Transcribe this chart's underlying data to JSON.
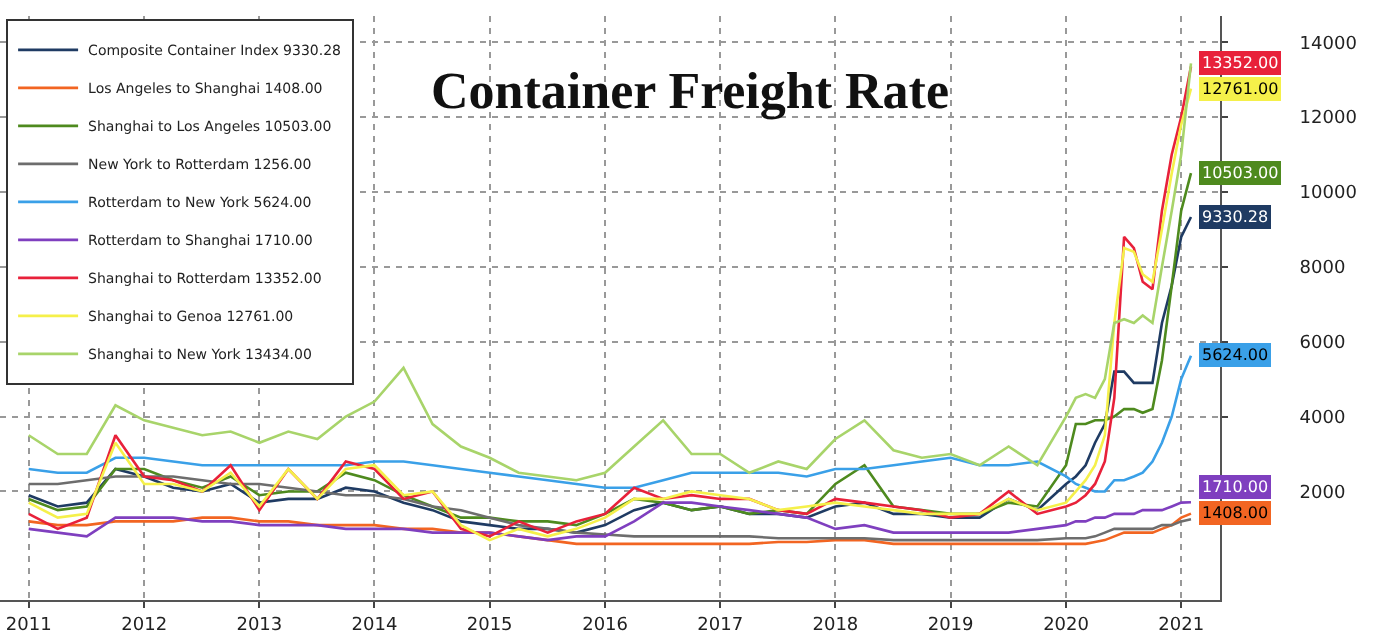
{
  "chart_data": {
    "type": "line",
    "title": "Container Freight Rate",
    "x": [
      "2011-07",
      "2011-10",
      "2012-01",
      "2012-04",
      "2012-07",
      "2012-10",
      "2013-01",
      "2013-04",
      "2013-07",
      "2013-10",
      "2014-01",
      "2014-04",
      "2014-07",
      "2014-10",
      "2015-01",
      "2015-04",
      "2015-07",
      "2015-10",
      "2016-01",
      "2016-04",
      "2016-07",
      "2016-10",
      "2017-01",
      "2017-04",
      "2017-07",
      "2017-10",
      "2018-01",
      "2018-04",
      "2018-07",
      "2018-10",
      "2019-01",
      "2019-04",
      "2019-07",
      "2019-10",
      "2020-01",
      "2020-04",
      "2020-07",
      "2020-08",
      "2020-09",
      "2020-10",
      "2020-11",
      "2020-12",
      "2021-01",
      "2021-02",
      "2021-03",
      "2021-04",
      "2021-05",
      "2021-06",
      "2021-07",
      "2021-08"
    ],
    "series": [
      {
        "name": "Composite Container Index 9330.28",
        "color": "#1f3b63",
        "values": [
          1900,
          1600,
          1700,
          2600,
          2400,
          2100,
          2000,
          2200,
          1700,
          1800,
          1800,
          2100,
          2000,
          1700,
          1500,
          1200,
          1100,
          1000,
          1000,
          900,
          1100,
          1500,
          1700,
          1500,
          1600,
          1400,
          1400,
          1300,
          1600,
          1700,
          1400,
          1400,
          1300,
          1300,
          1800,
          1500,
          2200,
          2400,
          2700,
          3300,
          3800,
          5200,
          5200,
          4900,
          4900,
          4900,
          6500,
          7500,
          8800,
          9330.28
        ],
        "value_labels": [
          null,
          null,
          null,
          null,
          null,
          null,
          null,
          null,
          null,
          null,
          null,
          null,
          null,
          null,
          null,
          null,
          null,
          null,
          null,
          null,
          null,
          null,
          null,
          null,
          null,
          null,
          null,
          null,
          null,
          null,
          null,
          null,
          null,
          null,
          null,
          null,
          null,
          null,
          null,
          null,
          null,
          null,
          null,
          null,
          null,
          null,
          null,
          null,
          null,
          "9330.28"
        ]
      },
      {
        "name": "Los Angeles to Shanghai 1408.00",
        "color": "#f26522",
        "values": [
          1200,
          1100,
          1100,
          1200,
          1200,
          1200,
          1300,
          1300,
          1200,
          1200,
          1100,
          1100,
          1100,
          1000,
          1000,
          900,
          900,
          800,
          700,
          600,
          600,
          600,
          600,
          600,
          600,
          600,
          650,
          650,
          700,
          700,
          600,
          600,
          600,
          600,
          600,
          600,
          600,
          600,
          600,
          650,
          700,
          800,
          900,
          900,
          900,
          900,
          1000,
          1100,
          1300,
          1408
        ],
        "value_labels": [
          null,
          null,
          null,
          null,
          null,
          null,
          null,
          null,
          null,
          null,
          null,
          null,
          null,
          null,
          null,
          null,
          null,
          null,
          null,
          null,
          null,
          null,
          null,
          null,
          null,
          null,
          null,
          null,
          null,
          null,
          null,
          null,
          null,
          null,
          null,
          null,
          null,
          null,
          null,
          null,
          null,
          null,
          null,
          null,
          null,
          null,
          null,
          null,
          null,
          "1408.00"
        ]
      },
      {
        "name": "Shanghai to Los Angeles 10503.00",
        "color": "#4e8a1e",
        "values": [
          1800,
          1500,
          1600,
          2600,
          2600,
          2300,
          2100,
          2400,
          1900,
          2000,
          2000,
          2500,
          2300,
          1900,
          1600,
          1300,
          1300,
          1200,
          1200,
          1100,
          1400,
          1800,
          1700,
          1500,
          1600,
          1400,
          1500,
          1400,
          2200,
          2700,
          1600,
          1500,
          1400,
          1400,
          1700,
          1600,
          2700,
          3800,
          3800,
          3900,
          3900,
          4000,
          4200,
          4200,
          4100,
          4200,
          5500,
          7500,
          9500,
          10503
        ],
        "value_labels": [
          null,
          null,
          null,
          null,
          null,
          null,
          null,
          null,
          null,
          null,
          null,
          null,
          null,
          null,
          null,
          null,
          null,
          null,
          null,
          null,
          null,
          null,
          null,
          null,
          null,
          null,
          null,
          null,
          null,
          null,
          null,
          null,
          null,
          null,
          null,
          null,
          null,
          null,
          null,
          null,
          null,
          null,
          null,
          null,
          null,
          null,
          null,
          null,
          null,
          "10503.00"
        ]
      },
      {
        "name": "New York to Rotterdam 1256.00",
        "color": "#6d6d6d",
        "values": [
          2200,
          2200,
          2300,
          2400,
          2400,
          2400,
          2300,
          2200,
          2200,
          2100,
          2000,
          1900,
          1900,
          1800,
          1600,
          1500,
          1300,
          1100,
          1000,
          900,
          850,
          800,
          800,
          800,
          800,
          800,
          750,
          750,
          750,
          750,
          700,
          700,
          700,
          700,
          700,
          700,
          750,
          750,
          750,
          800,
          900,
          1000,
          1000,
          1000,
          1000,
          1000,
          1100,
          1100,
          1200,
          1256
        ]
      },
      {
        "name": "Rotterdam to New York 5624.00",
        "color": "#3aa0e8",
        "values": [
          2600,
          2500,
          2500,
          2900,
          2900,
          2800,
          2700,
          2700,
          2700,
          2700,
          2700,
          2700,
          2800,
          2800,
          2700,
          2600,
          2500,
          2400,
          2300,
          2200,
          2100,
          2100,
          2300,
          2500,
          2500,
          2500,
          2500,
          2400,
          2600,
          2600,
          2700,
          2800,
          2900,
          2700,
          2700,
          2800,
          2400,
          2200,
          2100,
          2000,
          2000,
          2300,
          2300,
          2400,
          2500,
          2800,
          3300,
          4000,
          5000,
          5624
        ],
        "value_labels": [
          null,
          null,
          null,
          null,
          null,
          null,
          null,
          null,
          null,
          null,
          null,
          null,
          null,
          null,
          null,
          null,
          null,
          null,
          null,
          null,
          null,
          null,
          null,
          null,
          null,
          null,
          null,
          null,
          null,
          null,
          null,
          null,
          null,
          null,
          null,
          null,
          null,
          null,
          null,
          null,
          null,
          null,
          null,
          null,
          null,
          null,
          null,
          null,
          null,
          "5624.00"
        ]
      },
      {
        "name": "Rotterdam to Shanghai 1710.00",
        "color": "#7f3fbf",
        "values": [
          1000,
          900,
          800,
          1300,
          1300,
          1300,
          1200,
          1200,
          1100,
          1100,
          1100,
          1000,
          1000,
          1000,
          900,
          900,
          900,
          800,
          700,
          800,
          800,
          1200,
          1700,
          1700,
          1600,
          1500,
          1400,
          1300,
          1000,
          1100,
          900,
          900,
          900,
          900,
          900,
          1000,
          1100,
          1200,
          1200,
          1300,
          1300,
          1400,
          1400,
          1400,
          1500,
          1500,
          1500,
          1600,
          1700,
          1710
        ],
        "value_labels": [
          null,
          null,
          null,
          null,
          null,
          null,
          null,
          null,
          null,
          null,
          null,
          null,
          null,
          null,
          null,
          null,
          null,
          null,
          null,
          null,
          null,
          null,
          null,
          null,
          null,
          null,
          null,
          null,
          null,
          null,
          null,
          null,
          null,
          null,
          null,
          null,
          null,
          null,
          null,
          null,
          null,
          null,
          null,
          null,
          null,
          null,
          null,
          null,
          null,
          "1710.00"
        ]
      },
      {
        "name": "Shanghai to Rotterdam 13352.00",
        "color": "#e8213a",
        "values": [
          1400,
          1000,
          1300,
          3500,
          2400,
          2300,
          2000,
          2700,
          1500,
          2600,
          1800,
          2800,
          2600,
          1800,
          2000,
          1000,
          800,
          1200,
          900,
          1200,
          1400,
          2100,
          1800,
          1900,
          1800,
          1800,
          1500,
          1400,
          1800,
          1700,
          1600,
          1500,
          1300,
          1400,
          2000,
          1400,
          1600,
          1700,
          1900,
          2200,
          2800,
          4500,
          8800,
          8500,
          7600,
          7400,
          9500,
          11000,
          12000,
          13352
        ],
        "value_labels": [
          null,
          null,
          null,
          null,
          null,
          null,
          null,
          null,
          null,
          null,
          null,
          null,
          null,
          null,
          null,
          null,
          null,
          null,
          null,
          null,
          null,
          null,
          null,
          null,
          null,
          null,
          null,
          null,
          null,
          null,
          null,
          null,
          null,
          null,
          null,
          null,
          null,
          null,
          null,
          null,
          null,
          null,
          null,
          null,
          null,
          null,
          null,
          null,
          null,
          "13352.00"
        ]
      },
      {
        "name": "Shanghai to Genoa 12761.00",
        "color": "#f5f04a",
        "values": [
          1700,
          1300,
          1400,
          3300,
          2200,
          2200,
          2000,
          2500,
          1600,
          2600,
          1800,
          2600,
          2700,
          1900,
          2000,
          1100,
          700,
          1000,
          800,
          1000,
          1300,
          1800,
          1800,
          2000,
          1900,
          1800,
          1500,
          1600,
          1700,
          1600,
          1500,
          1400,
          1400,
          1400,
          1800,
          1500,
          1700,
          2000,
          2300,
          2700,
          3500,
          6500,
          8500,
          8400,
          7800,
          7600,
          9000,
          10500,
          11800,
          12761
        ],
        "value_labels": [
          null,
          null,
          null,
          null,
          null,
          null,
          null,
          null,
          null,
          null,
          null,
          null,
          null,
          null,
          null,
          null,
          null,
          null,
          null,
          null,
          null,
          null,
          null,
          null,
          null,
          null,
          null,
          null,
          null,
          null,
          null,
          null,
          null,
          null,
          null,
          null,
          null,
          null,
          null,
          null,
          null,
          null,
          null,
          null,
          null,
          null,
          null,
          null,
          null,
          "12761.00"
        ]
      },
      {
        "name": "Shanghai to New York 13434.00",
        "color": "#a8d46a",
        "values": [
          3500,
          3000,
          3000,
          4300,
          3900,
          3700,
          3500,
          3600,
          3300,
          3600,
          3400,
          4000,
          4400,
          5300,
          3800,
          3200,
          2900,
          2500,
          2400,
          2300,
          2500,
          3200,
          3900,
          3000,
          3000,
          2500,
          2800,
          2600,
          3400,
          3900,
          3100,
          2900,
          3000,
          2700,
          3200,
          2700,
          4000,
          4500,
          4600,
          4500,
          5000,
          6500,
          6600,
          6500,
          6700,
          6500,
          8000,
          9500,
          11000,
          13434
        ]
      }
    ],
    "xlim": [
      "2011-04-01",
      "2021-11-01"
    ],
    "xticks": [
      {
        "value": "2011-07-01",
        "label": "2011"
      },
      {
        "value": "2012-07-01",
        "label": "2012"
      },
      {
        "value": "2013-07-01",
        "label": "2013"
      },
      {
        "value": "2014-07-01",
        "label": "2014"
      },
      {
        "value": "2015-07-01",
        "label": "2015"
      },
      {
        "value": "2016-07-01",
        "label": "2016"
      },
      {
        "value": "2017-07-01",
        "label": "2017"
      },
      {
        "value": "2018-07-01",
        "label": "2018"
      },
      {
        "value": "2019-07-01",
        "label": "2019"
      },
      {
        "value": "2020-07-01",
        "label": "2020"
      },
      {
        "value": "2021-07-01",
        "label": "2021"
      }
    ],
    "ylim": [
      -900,
      14700
    ],
    "yticks": [
      2000,
      4000,
      6000,
      8000,
      10000,
      12000,
      14000
    ],
    "grid": true,
    "legend": "top left",
    "marker": "none",
    "line_style": "solid"
  }
}
